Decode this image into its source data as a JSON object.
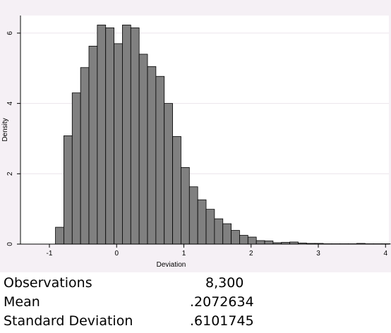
{
  "chart_data": {
    "type": "bar",
    "subtype": "histogram",
    "xlabel": "Deviation",
    "ylabel": "Density",
    "xlim": [
      -1,
      4.05
    ],
    "ylim": [
      0,
      6.5
    ],
    "x_ticks": [
      "-1",
      "0",
      "1",
      "2",
      "3",
      "4"
    ],
    "y_ticks": [
      "0",
      "2",
      "4",
      "6"
    ],
    "gridlines": true,
    "bin_width": 0.1245,
    "bins": [
      {
        "x": -0.91,
        "value": 0.48
      },
      {
        "x": -0.7855,
        "value": 3.08
      },
      {
        "x": -0.661,
        "value": 4.3
      },
      {
        "x": -0.5365,
        "value": 5.02
      },
      {
        "x": -0.412,
        "value": 5.63
      },
      {
        "x": -0.2875,
        "value": 6.23
      },
      {
        "x": -0.163,
        "value": 6.15
      },
      {
        "x": -0.0385,
        "value": 5.7
      },
      {
        "x": 0.086,
        "value": 6.23
      },
      {
        "x": 0.2105,
        "value": 6.15
      },
      {
        "x": 0.335,
        "value": 5.4
      },
      {
        "x": 0.4595,
        "value": 5.05
      },
      {
        "x": 0.584,
        "value": 4.77
      },
      {
        "x": 0.7085,
        "value": 4.0
      },
      {
        "x": 0.833,
        "value": 3.06
      },
      {
        "x": 0.9575,
        "value": 2.18
      },
      {
        "x": 1.082,
        "value": 1.63
      },
      {
        "x": 1.2065,
        "value": 1.26
      },
      {
        "x": 1.331,
        "value": 0.99
      },
      {
        "x": 1.4555,
        "value": 0.72
      },
      {
        "x": 1.58,
        "value": 0.58
      },
      {
        "x": 1.7045,
        "value": 0.39
      },
      {
        "x": 1.829,
        "value": 0.25
      },
      {
        "x": 1.9535,
        "value": 0.2
      },
      {
        "x": 2.078,
        "value": 0.1
      },
      {
        "x": 2.2025,
        "value": 0.09
      },
      {
        "x": 2.327,
        "value": 0.04
      },
      {
        "x": 2.4515,
        "value": 0.05
      },
      {
        "x": 2.576,
        "value": 0.06
      },
      {
        "x": 2.7005,
        "value": 0.03
      },
      {
        "x": 2.825,
        "value": 0.02
      },
      {
        "x": 2.9495,
        "value": 0.02
      },
      {
        "x": 3.074,
        "value": 0.01
      },
      {
        "x": 3.1985,
        "value": 0.01
      },
      {
        "x": 3.323,
        "value": 0.01
      },
      {
        "x": 3.4475,
        "value": 0.01
      },
      {
        "x": 3.572,
        "value": 0.02
      },
      {
        "x": 3.6965,
        "value": 0.01
      },
      {
        "x": 3.821,
        "value": 0.01
      },
      {
        "x": 3.9455,
        "value": 0.01
      }
    ],
    "colors": {
      "bar_fill": "#808080",
      "bar_stroke": "#000000",
      "plot_background": "#ffffff",
      "outer_background": "#f5f0f5",
      "gridline": "#ece4ec"
    }
  },
  "stats": [
    {
      "label": "Observations",
      "value": "8,300"
    },
    {
      "label": "Mean",
      "value": ".2072634"
    },
    {
      "label": "Standard Deviation",
      "value": ".6101745"
    }
  ]
}
